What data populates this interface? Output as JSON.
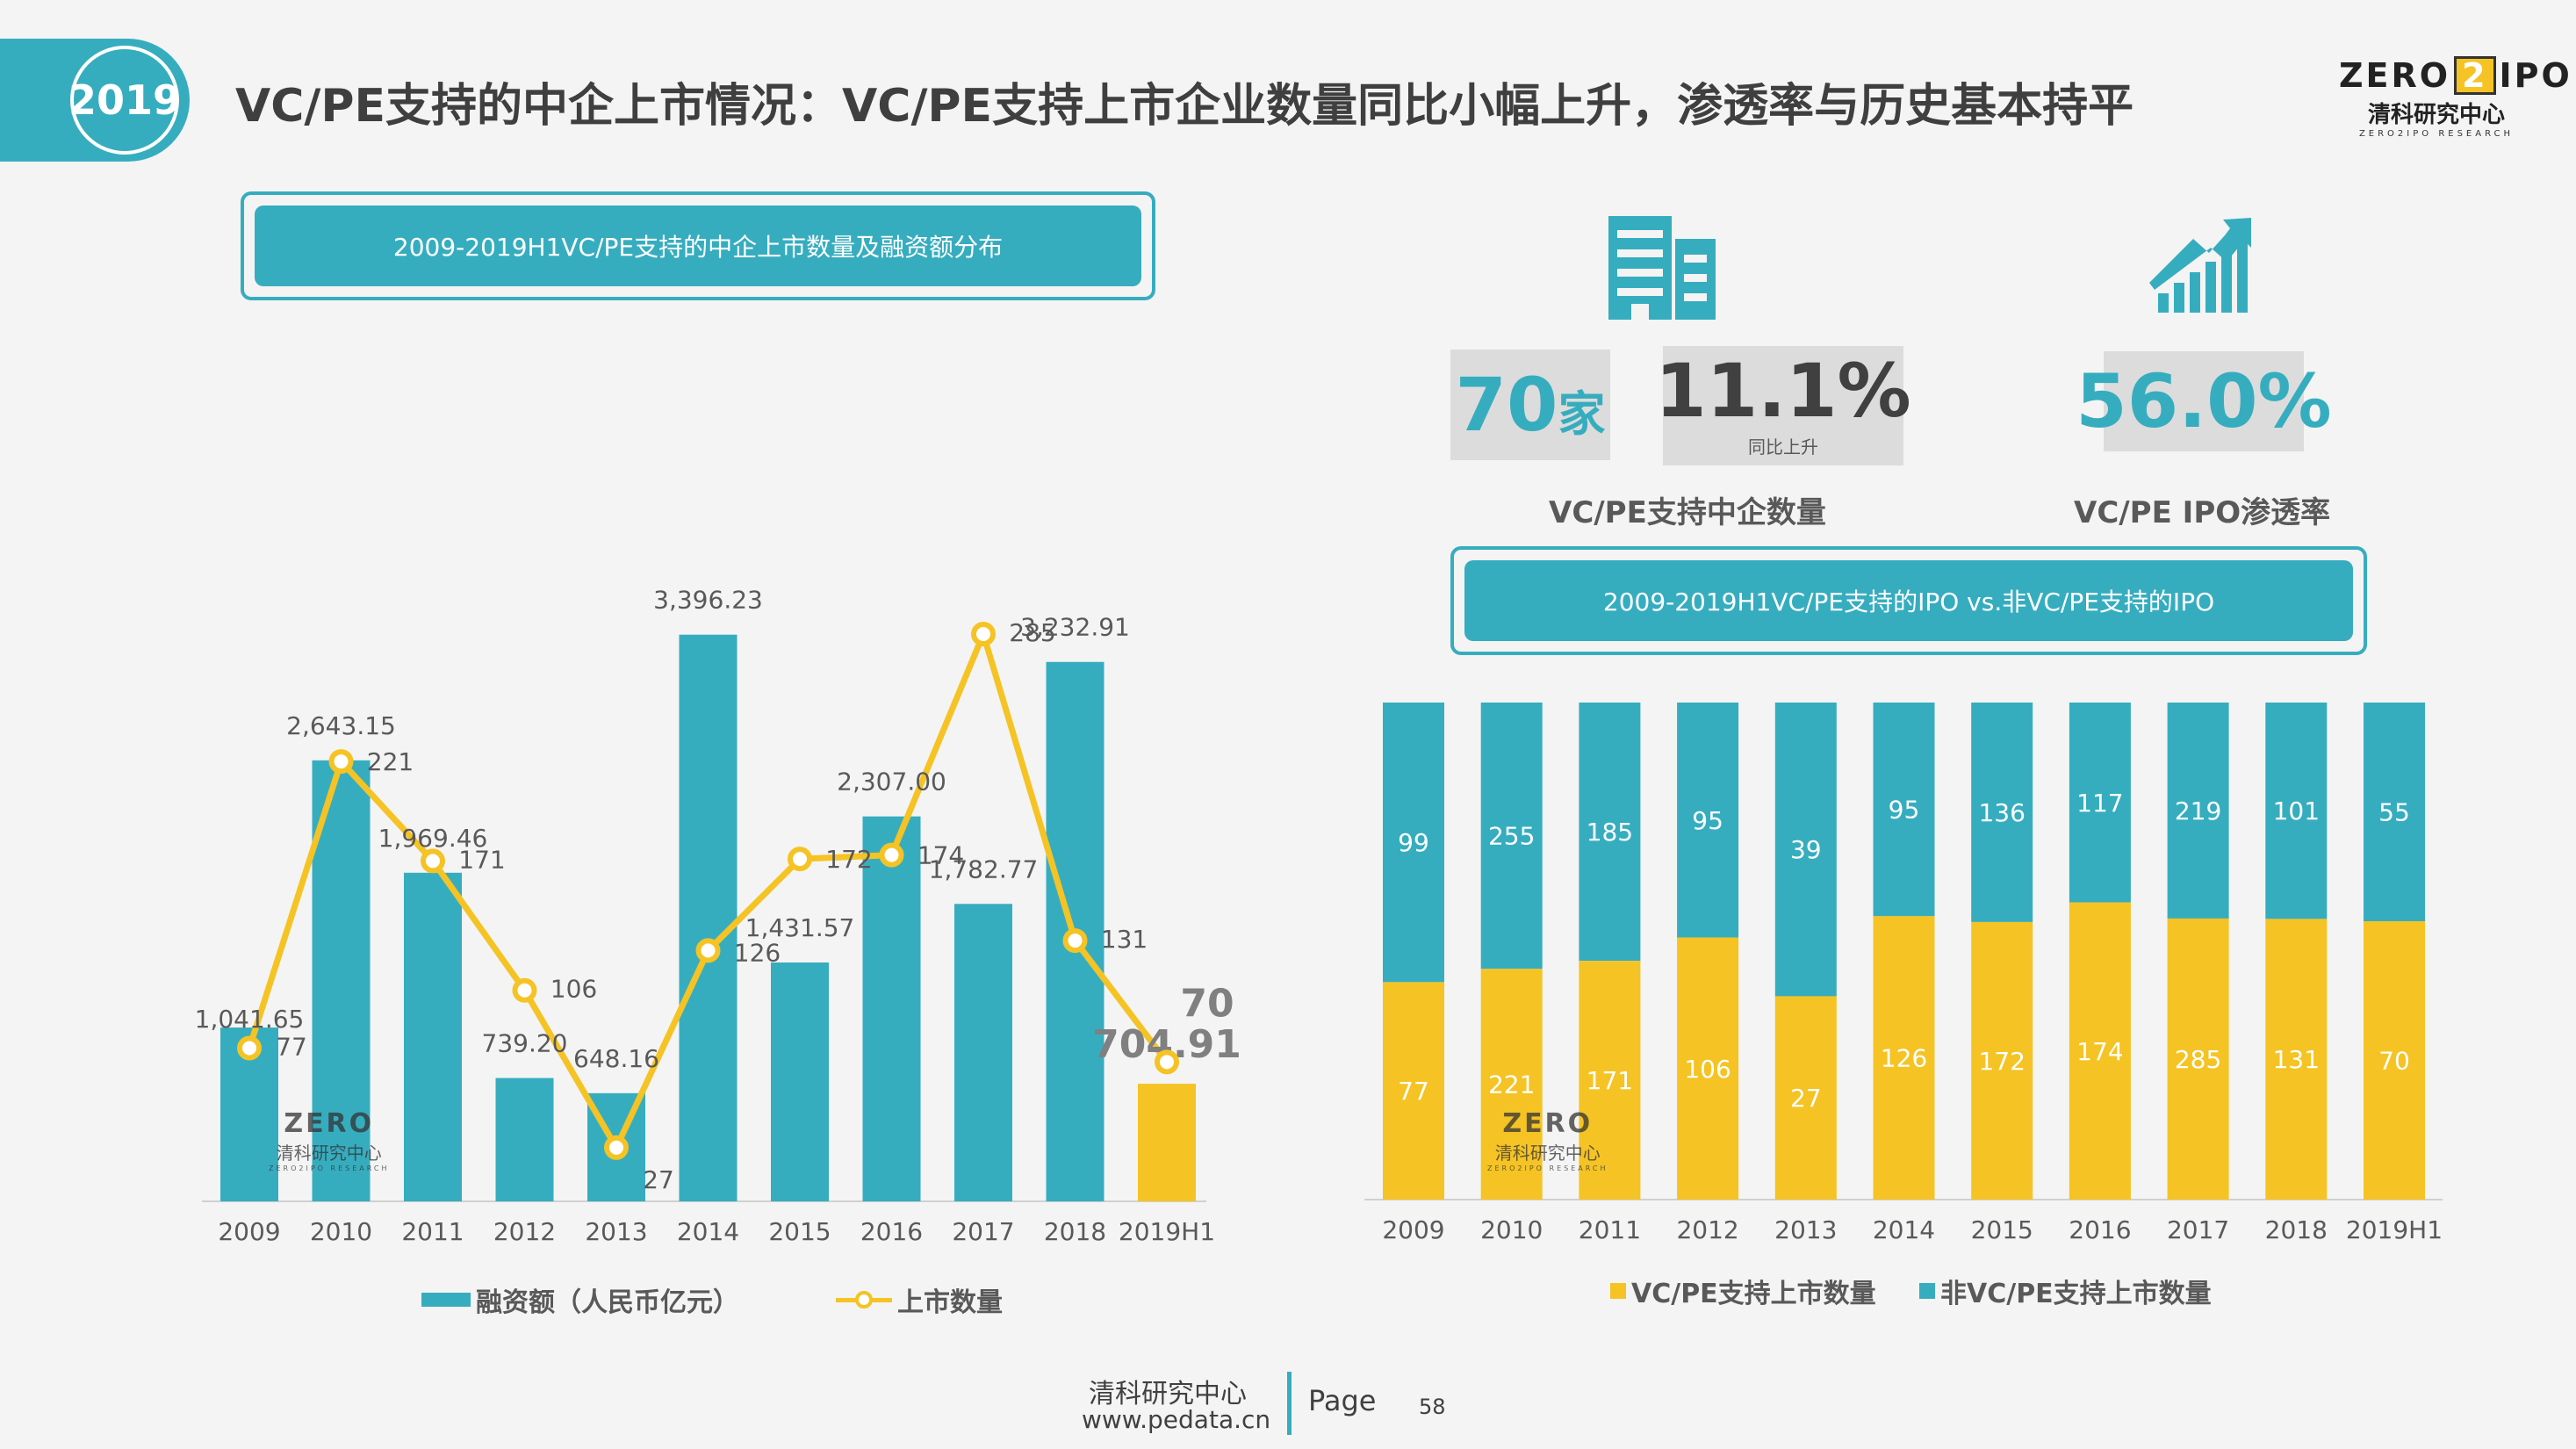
{
  "header": {
    "year": "2019",
    "title": "VC/PE支持的中企上市情况：VC/PE支持上市企业数量同比小幅上升，渗透率与历史基本持平"
  },
  "logo": {
    "brand_left": "ZERO",
    "brand_mid": "2",
    "brand_right": "IPO",
    "cn": "清科研究中心",
    "en": "ZERO2IPO RESEARCH"
  },
  "left_panel": {
    "title": "2009-2019H1VC/PE支持的中企上市数量及融资额分布",
    "legend_bar": "融资额（人民币亿元）",
    "legend_line": "上市数量"
  },
  "stats": {
    "count_value": "70",
    "count_unit": "家",
    "count_label": "VC/PE支持中企数量",
    "growth_value": "11.1%",
    "growth_sub": "同比上升",
    "penetration_value": "56.0%",
    "penetration_label": "VC/PE IPO渗透率"
  },
  "right_panel": {
    "title": "2009-2019H1VC/PE支持的IPO vs.非VC/PE支持的IPO",
    "legend_vcpe": "VC/PE支持上市数量",
    "legend_non": "非VC/PE支持上市数量"
  },
  "colors": {
    "teal": "#36adbf",
    "yellow": "#f5c324",
    "text": "#595959"
  },
  "icons": {
    "building": "building-icon",
    "growth": "growth-chart-icon"
  },
  "footer": {
    "org": "清科研究中心",
    "url": "www.pedata.cn",
    "page_label": "Page",
    "page_number": "58"
  },
  "chart_data": [
    {
      "type": "bar",
      "categories": [
        "2009",
        "2010",
        "2011",
        "2012",
        "2013",
        "2014",
        "2015",
        "2016",
        "2017",
        "2018",
        "2019H1"
      ],
      "series": [
        {
          "name": "融资额（人民币亿元）",
          "kind": "bar",
          "values": [
            1041.65,
            2643.15,
            1969.46,
            739.2,
            648.16,
            3396.23,
            1431.57,
            2307.0,
            1782.77,
            3232.91,
            704.91
          ],
          "labels": [
            "1,041.65",
            "2,643.15",
            "1,969.46",
            "739.20",
            "648.16",
            "3,396.23",
            "1,431.57",
            "2,307.00",
            "1,782.77",
            "3,232.91",
            "704.91"
          ]
        },
        {
          "name": "上市数量",
          "kind": "line",
          "values": [
            77,
            221,
            171,
            106,
            27,
            126,
            172,
            174,
            285,
            131,
            70
          ]
        }
      ],
      "bar_highlight_last": true,
      "ylim_bar": [
        0,
        4000
      ],
      "ylim_line": [
        0,
        300
      ],
      "legend_position": "bottom"
    },
    {
      "type": "bar",
      "stacked": true,
      "percent_stacked": true,
      "categories": [
        "2009",
        "2010",
        "2011",
        "2012",
        "2013",
        "2014",
        "2015",
        "2016",
        "2017",
        "2018",
        "2019H1"
      ],
      "series": [
        {
          "name": "VC/PE支持上市数量",
          "values": [
            77,
            221,
            171,
            106,
            27,
            126,
            172,
            174,
            285,
            131,
            70
          ]
        },
        {
          "name": "非VC/PE支持上市数量",
          "values": [
            99,
            255,
            185,
            95,
            39,
            95,
            136,
            117,
            219,
            101,
            55
          ]
        }
      ],
      "legend_position": "bottom"
    }
  ]
}
